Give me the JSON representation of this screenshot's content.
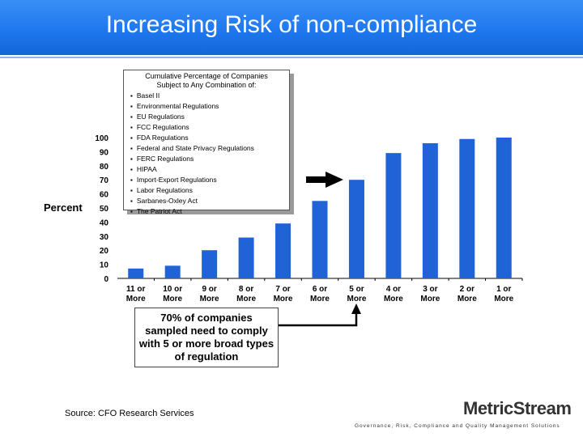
{
  "slide": {
    "title": "Increasing Risk of non-compliance",
    "source": "Source: CFO Research Services",
    "logo": "MetricStream",
    "logo_tagline": "Governance, Risk, Compliance and Quality Management Solutions"
  },
  "regulations_box": {
    "title": "Cumulative Percentage of Companies\nSubject to Any Combination of:",
    "items": [
      "Basel II",
      "Environmental Regulations",
      "EU Regulations",
      "FCC Regulations",
      "FDA Regulations",
      "Federal and State Privacy Regulations",
      "FERC Regulations",
      "HIPAA",
      "Import-Export Regulations",
      "Labor Regulations",
      "Sarbanes-Oxley Act",
      "The Patriot Act"
    ]
  },
  "callout": {
    "text": "70% of companies sampled need to comply with 5 or more broad types of regulation"
  },
  "chart_data": {
    "type": "bar",
    "categories": [
      [
        "11 or",
        "More"
      ],
      [
        "10 or",
        "More"
      ],
      [
        "9 or",
        "More"
      ],
      [
        "8 or",
        "More"
      ],
      [
        "7 or",
        "More"
      ],
      [
        "6 or",
        "More"
      ],
      [
        "5 or",
        "More"
      ],
      [
        "4 or",
        "More"
      ],
      [
        "3 or",
        "More"
      ],
      [
        "2 or",
        "More"
      ],
      [
        "1 or",
        "More"
      ]
    ],
    "values": [
      7,
      9,
      20,
      29,
      39,
      55,
      70,
      89,
      96,
      99,
      100
    ],
    "ylabel": "Percent",
    "ylim": [
      0,
      100
    ],
    "yticks": [
      0,
      10,
      20,
      30,
      40,
      50,
      60,
      70,
      80,
      90,
      100
    ],
    "bar_color": "#1f63d6",
    "grid": false,
    "highlighted_category_index": 6
  }
}
